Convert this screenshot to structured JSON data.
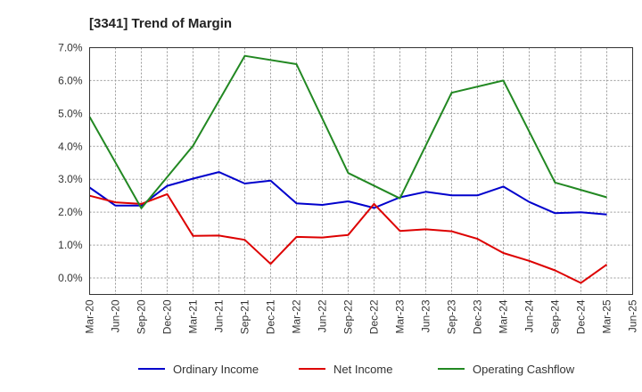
{
  "chart_data": {
    "type": "line",
    "title": "[3341]  Trend of Margin",
    "xlabel": "",
    "ylabel": "",
    "categories": [
      "Mar-20",
      "Jun-20",
      "Sep-20",
      "Dec-20",
      "Mar-21",
      "Jun-21",
      "Sep-21",
      "Dec-21",
      "Mar-22",
      "Jun-22",
      "Sep-22",
      "Dec-22",
      "Mar-23",
      "Jun-23",
      "Sep-23",
      "Dec-23",
      "Mar-24",
      "Jun-24",
      "Sep-24",
      "Dec-24",
      "Mar-25",
      "Jun-25"
    ],
    "y_ticks": [
      "0.0%",
      "1.0%",
      "2.0%",
      "3.0%",
      "4.0%",
      "5.0%",
      "6.0%",
      "7.0%"
    ],
    "ylim": [
      -0.5,
      7.0
    ],
    "grid": true,
    "legend_position": "bottom",
    "series": [
      {
        "name": "Ordinary Income",
        "color": "#0000cc",
        "values": [
          2.75,
          2.2,
          2.2,
          2.8,
          3.02,
          3.22,
          2.87,
          2.96,
          2.27,
          2.22,
          2.33,
          2.13,
          2.45,
          2.62,
          2.51,
          2.51,
          2.78,
          2.31,
          1.97,
          2.0,
          1.93,
          null
        ]
      },
      {
        "name": "Net Income",
        "color": "#dd0000",
        "values": [
          2.5,
          2.3,
          2.25,
          2.55,
          1.28,
          1.29,
          1.16,
          0.43,
          1.25,
          1.23,
          1.31,
          2.25,
          1.43,
          1.48,
          1.42,
          1.19,
          0.76,
          0.52,
          0.23,
          -0.15,
          0.41,
          null
        ]
      },
      {
        "name": "Operating Cashflow",
        "color": "#228822",
        "values": [
          4.9,
          null,
          2.12,
          null,
          4.02,
          null,
          6.75,
          null,
          6.5,
          null,
          3.19,
          null,
          2.42,
          null,
          5.63,
          null,
          6.0,
          null,
          2.9,
          null,
          2.45,
          null
        ]
      }
    ]
  }
}
